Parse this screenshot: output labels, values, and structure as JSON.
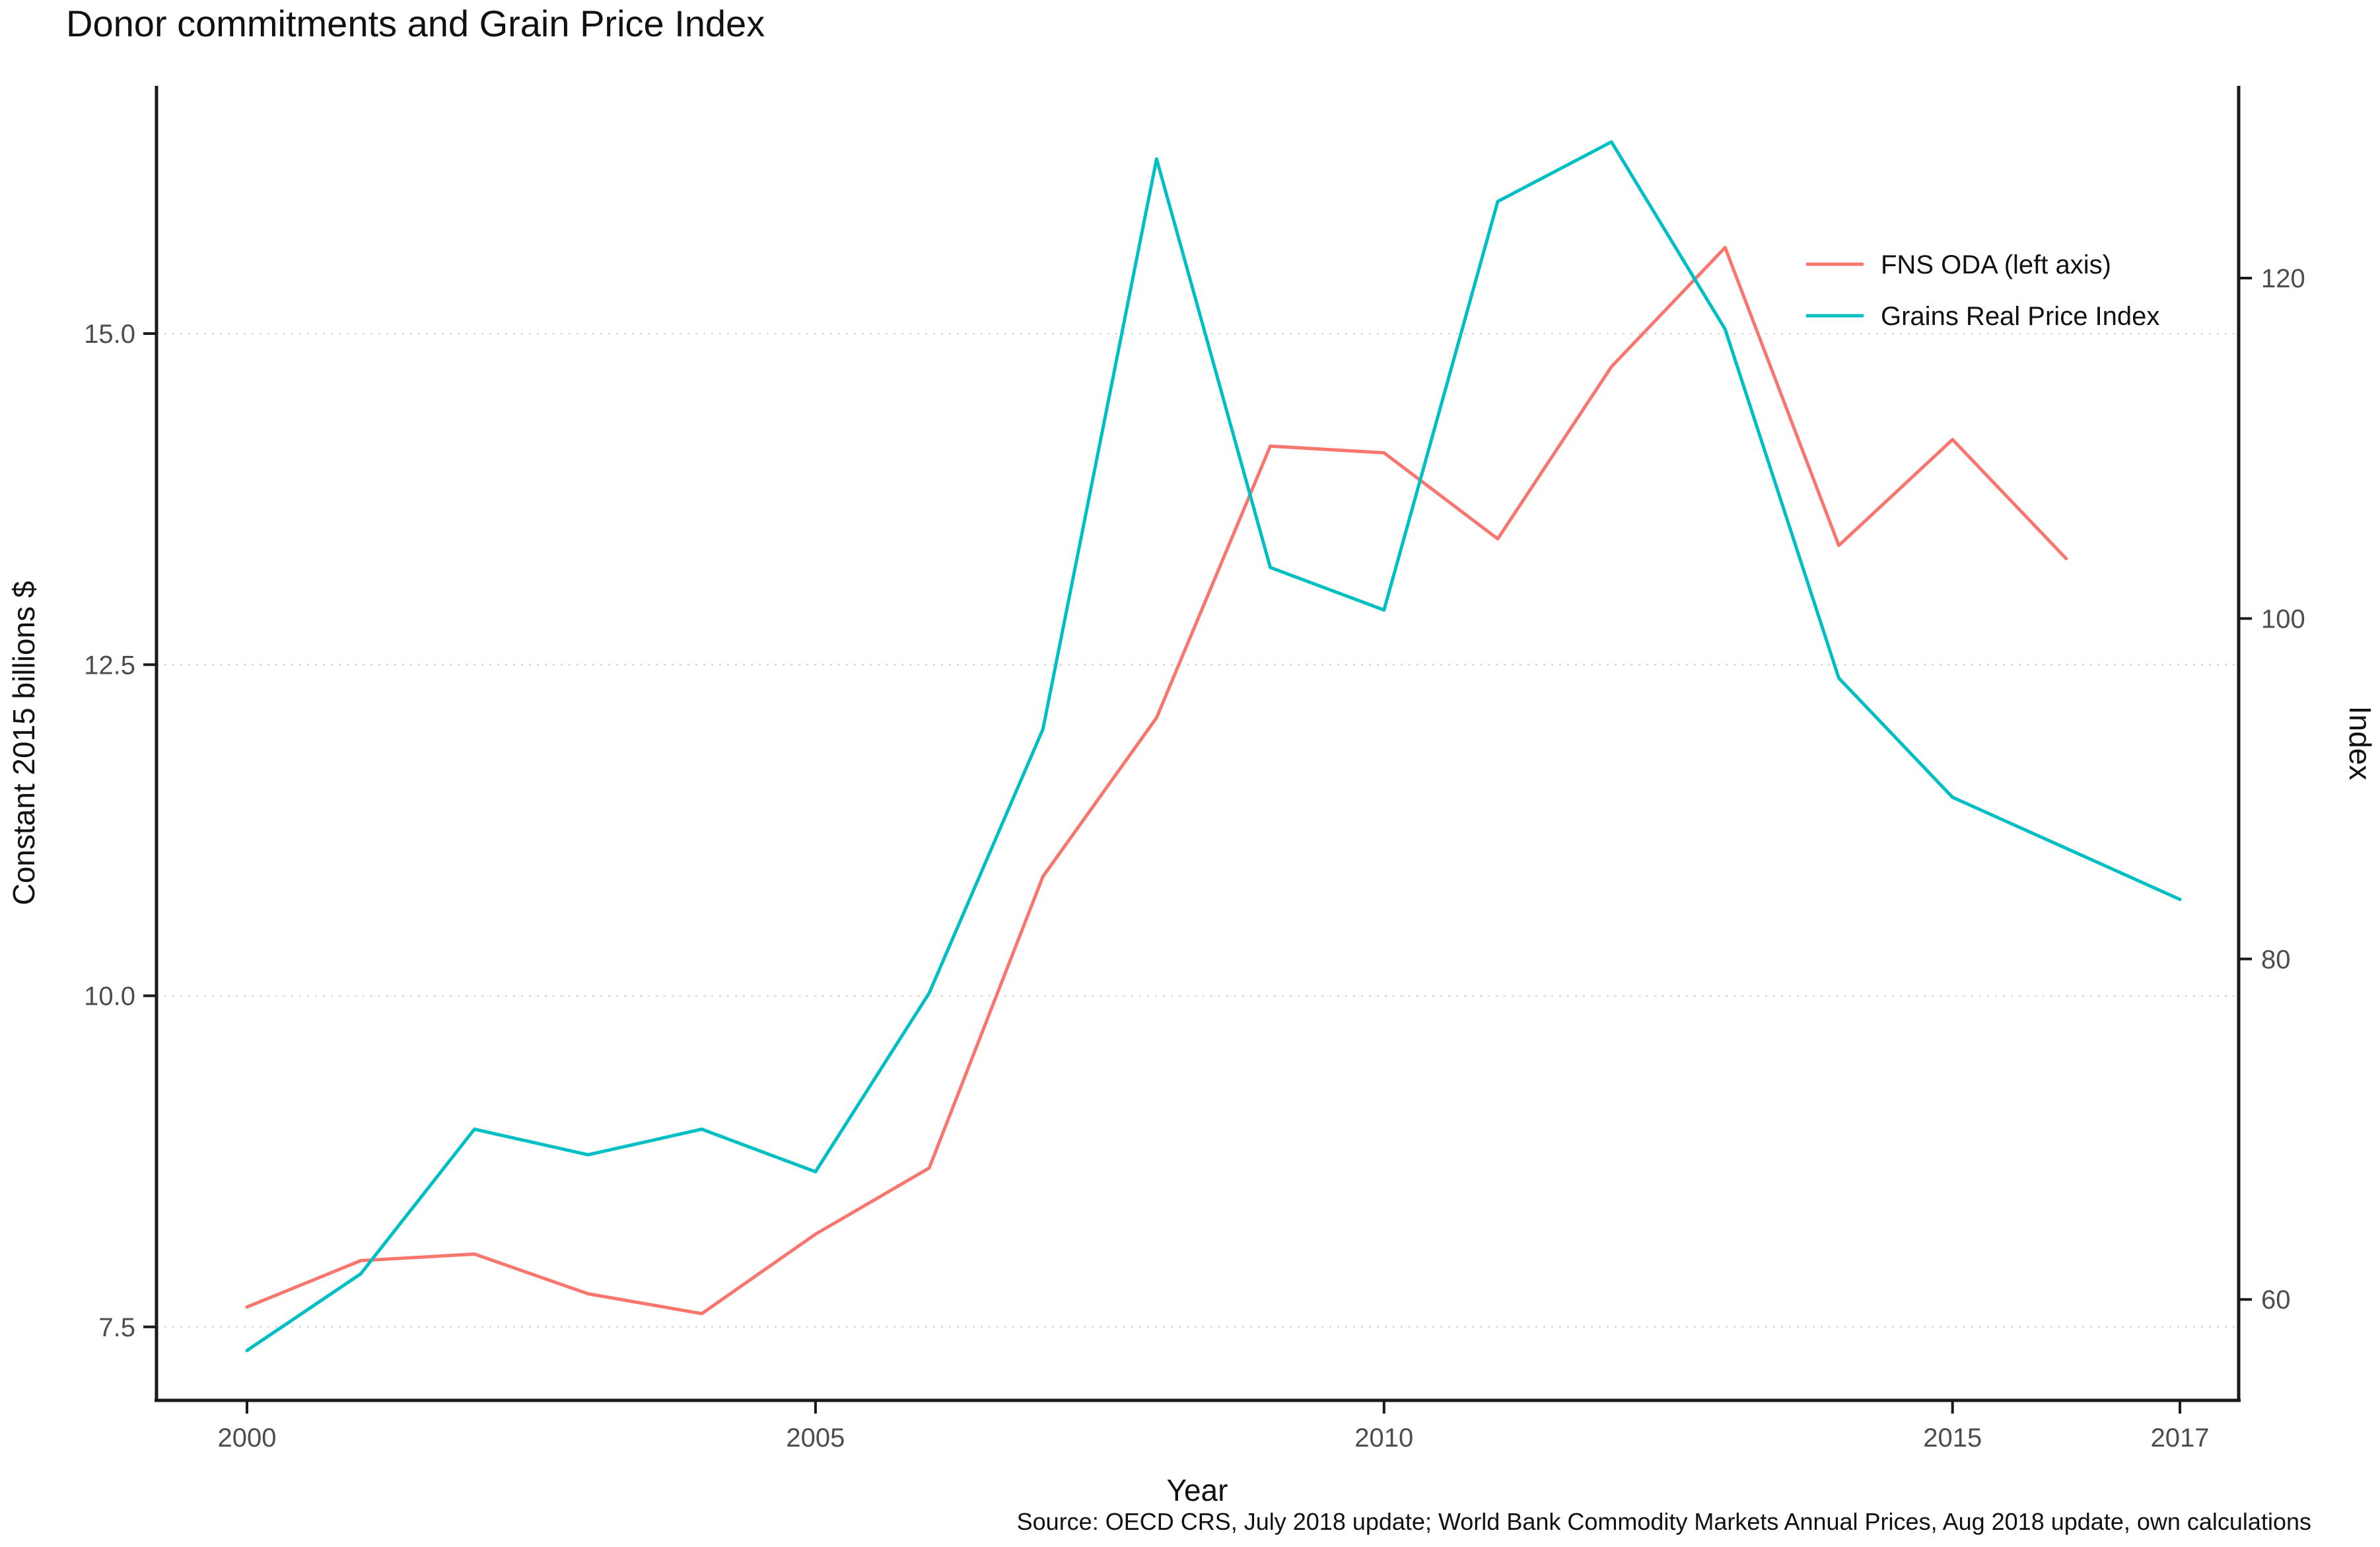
{
  "chart_data": {
    "type": "line",
    "title": "Donor commitments and Grain Price Index",
    "xlabel": "Year",
    "ylabel_left": "Constant 2015 billions $",
    "ylabel_right": "Index",
    "caption": "Source: OECD CRS, July 2018 update; World Bank Commodity Markets Annual Prices, Aug 2018 update, own calculations",
    "x_range": [
      2000,
      2017
    ],
    "x_ticks": [
      2000,
      2005,
      2010,
      2015,
      2017
    ],
    "x_tick_labels": [
      "2000",
      "2005",
      "2010",
      "2015",
      "2017"
    ],
    "y_left_ticks": [
      7.5,
      10.0,
      12.5,
      15.0
    ],
    "y_left_tick_labels": [
      "7.5",
      "10.0",
      "12.5",
      "15.0"
    ],
    "y_right_ticks": [
      60,
      80,
      100,
      120
    ],
    "y_right_tick_labels": [
      "60",
      "80",
      "100",
      "120"
    ],
    "gridlines_at_left_values": [
      7.5,
      10.0,
      12.5,
      15.0
    ],
    "grid": "dotted-major-horizontal",
    "legend_position": "inside-top-right",
    "series": [
      {
        "name": "FNS ODA (left axis)",
        "axis": "left",
        "color": "#F8766D",
        "years": [
          2000,
          2001,
          2002,
          2003,
          2004,
          2005,
          2006,
          2007,
          2008,
          2009,
          2010,
          2011,
          2012,
          2013,
          2014,
          2015,
          2016
        ],
        "values": [
          7.65,
          8.0,
          8.05,
          7.75,
          7.6,
          8.2,
          8.7,
          10.9,
          12.1,
          14.15,
          14.1,
          13.45,
          14.75,
          15.65,
          13.4,
          14.2,
          13.3
        ]
      },
      {
        "name": "Grains Real Price Index",
        "axis": "right",
        "color": "#00BFC4",
        "years": [
          2000,
          2001,
          2002,
          2003,
          2004,
          2005,
          2006,
          2007,
          2008,
          2009,
          2010,
          2011,
          2012,
          2013,
          2014,
          2015,
          2016,
          2017
        ],
        "values": [
          57,
          61.5,
          70,
          68.5,
          70,
          67.5,
          78,
          93.5,
          127,
          103,
          100.5,
          124.5,
          128,
          117,
          96.5,
          89.5,
          86.5,
          83.5
        ]
      }
    ],
    "legend": [
      {
        "label": "FNS ODA (left axis)",
        "color": "#F8766D"
      },
      {
        "label": "Grains Real Price Index",
        "color": "#00BFC4"
      }
    ]
  }
}
